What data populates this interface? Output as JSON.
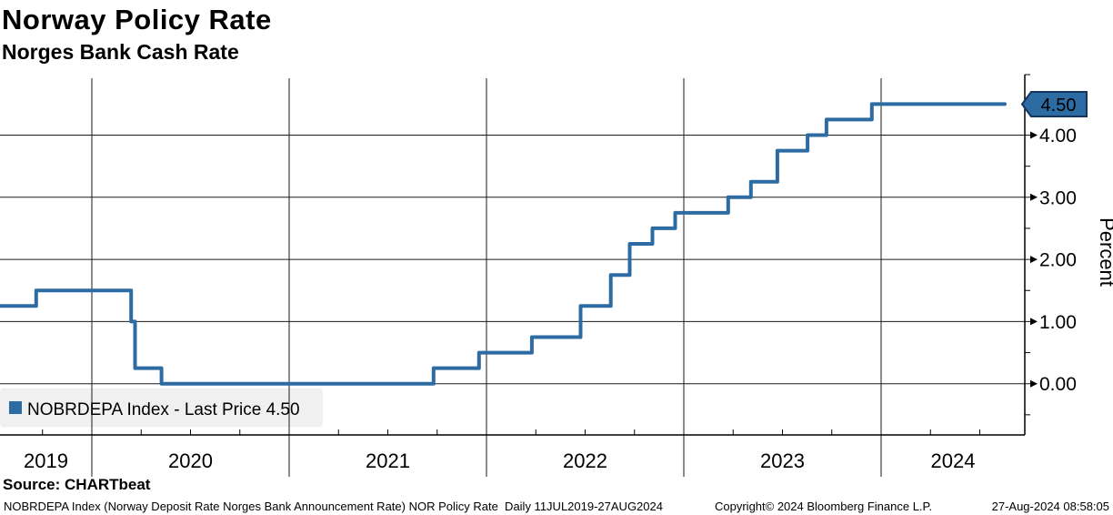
{
  "header": {
    "title": "Norway Policy Rate",
    "subtitle": "Norges Bank Cash Rate"
  },
  "chart_data": {
    "type": "line",
    "subtype": "step",
    "title": "Norway Policy Rate",
    "subtitle": "Norges Bank Cash Rate",
    "ylabel": "Percent",
    "ylim": [
      -0.8,
      4.9
    ],
    "grid": "on",
    "legend_position": "bottom-left",
    "x_year_labels": [
      "2019",
      "2020",
      "2021",
      "2022",
      "2023",
      "2024"
    ],
    "x_range_label": "11JUL2019-27AUG2024",
    "y_major_ticks": [
      {
        "value": 0,
        "label": "0.00"
      },
      {
        "value": 1,
        "label": "1.00"
      },
      {
        "value": 2,
        "label": "2.00"
      },
      {
        "value": 3,
        "label": "3.00"
      },
      {
        "value": 4,
        "label": "4.00"
      }
    ],
    "y_minor_tick_values": [
      -0.5,
      0.5,
      1.5,
      2.5,
      3.5,
      5.0
    ],
    "last_price": "4.50",
    "series": [
      {
        "name": "NOBRDEPA Index",
        "color": "#2d6ba3",
        "steps": [
          {
            "date": "11JUL2019",
            "x": 2019.526,
            "rate": 1.25
          },
          {
            "date": "19SEP2019",
            "x": 2019.718,
            "rate": 1.5
          },
          {
            "date": "13MAR2020",
            "x": 2020.199,
            "rate": 1.0
          },
          {
            "date": "20MAR2020",
            "x": 2020.219,
            "rate": 0.25
          },
          {
            "date": "08MAY2020",
            "x": 2020.353,
            "rate": 0.0
          },
          {
            "date": "24SEP2021",
            "x": 2021.732,
            "rate": 0.25
          },
          {
            "date": "17DEC2021",
            "x": 2021.962,
            "rate": 0.5
          },
          {
            "date": "25MAR2022",
            "x": 2022.23,
            "rate": 0.75
          },
          {
            "date": "23JUN2022",
            "x": 2022.477,
            "rate": 1.25
          },
          {
            "date": "18AUG2022",
            "x": 2022.63,
            "rate": 1.75
          },
          {
            "date": "22SEP2022",
            "x": 2022.726,
            "rate": 2.25
          },
          {
            "date": "03NOV2022",
            "x": 2022.841,
            "rate": 2.5
          },
          {
            "date": "15DEC2022",
            "x": 2022.956,
            "rate": 2.75
          },
          {
            "date": "23MAR2023",
            "x": 2023.225,
            "rate": 3.0
          },
          {
            "date": "04MAY2023",
            "x": 2023.34,
            "rate": 3.25
          },
          {
            "date": "22JUN2023",
            "x": 2023.474,
            "rate": 3.75
          },
          {
            "date": "17AUG2023",
            "x": 2023.627,
            "rate": 4.0
          },
          {
            "date": "21SEP2023",
            "x": 2023.723,
            "rate": 4.25
          },
          {
            "date": "14DEC2023",
            "x": 2023.953,
            "rate": 4.5
          },
          {
            "date": "27AUG2024",
            "x": 2024.656,
            "rate": 4.5
          }
        ]
      }
    ],
    "legend": {
      "label": "NOBRDEPA Index - Last Price 4.50",
      "swatch_color": "#2d6ba3"
    },
    "colors": {
      "line": "#2d6ba3",
      "badge_fill": "#2d6ba3",
      "badge_border": "#14365c",
      "badge_text": "#ffffff",
      "grid": "#1a1a1a",
      "legend_bg": "#f0f0f0"
    }
  },
  "source": {
    "label": "Source: CHARTbeat"
  },
  "footer": {
    "left": "NOBRDEPA Index (Norway Deposit Rate Norges Bank Announcement Rate) NOR Policy Rate  Daily 11JUL2019-27AUG2024",
    "center": "Copyright© 2024 Bloomberg Finance L.P.",
    "right": "27-Aug-2024 08:58:05"
  }
}
